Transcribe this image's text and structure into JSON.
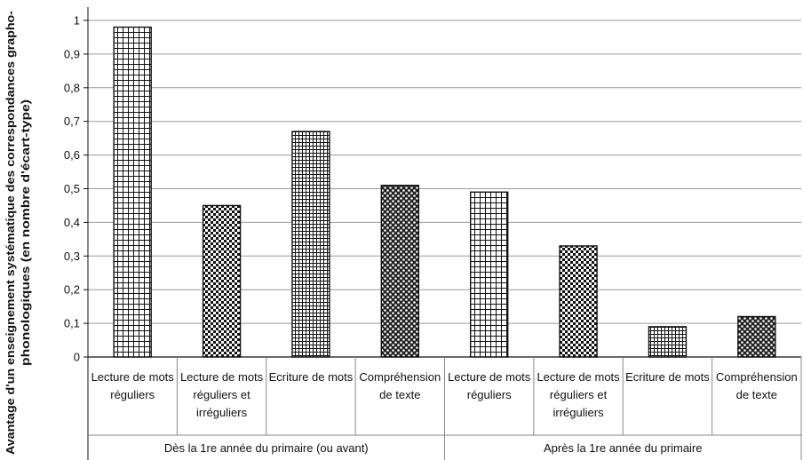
{
  "chart_data": {
    "type": "bar",
    "ylabel_lines": [
      "Avantage d'un enseignement systématique des correspondances grapho-",
      "phonologiques (en nombre d'écart-type)"
    ],
    "ylim": [
      0,
      1
    ],
    "yticks": [
      "0",
      "0,1",
      "0,2",
      "0,3",
      "0,4",
      "0,5",
      "0,6",
      "0,7",
      "0,8",
      "0,9",
      "1"
    ],
    "grid": true,
    "groups": [
      {
        "label": "Dès la 1re année du primaire (ou avant)",
        "categories": [
          {
            "lines": [
              "Lecture de mots",
              "réguliers"
            ],
            "value": 0.98,
            "pattern": "grid"
          },
          {
            "lines": [
              "Lecture de mots",
              "réguliers et",
              "irréguliers"
            ],
            "value": 0.45,
            "pattern": "checker"
          },
          {
            "lines": [
              "Ecriture de mots"
            ],
            "value": 0.67,
            "pattern": "finegrid"
          },
          {
            "lines": [
              "Compréhension",
              "de texte"
            ],
            "value": 0.51,
            "pattern": "dots"
          }
        ]
      },
      {
        "label": "Après la 1re année du primaire",
        "categories": [
          {
            "lines": [
              "Lecture de mots",
              "réguliers"
            ],
            "value": 0.49,
            "pattern": "grid"
          },
          {
            "lines": [
              "Lecture de mots",
              "réguliers et",
              "irréguliers"
            ],
            "value": 0.33,
            "pattern": "checker"
          },
          {
            "lines": [
              "Ecriture de mots"
            ],
            "value": 0.09,
            "pattern": "finegrid"
          },
          {
            "lines": [
              "Compréhension",
              "de texte"
            ],
            "value": 0.12,
            "pattern": "dots"
          }
        ]
      }
    ]
  }
}
